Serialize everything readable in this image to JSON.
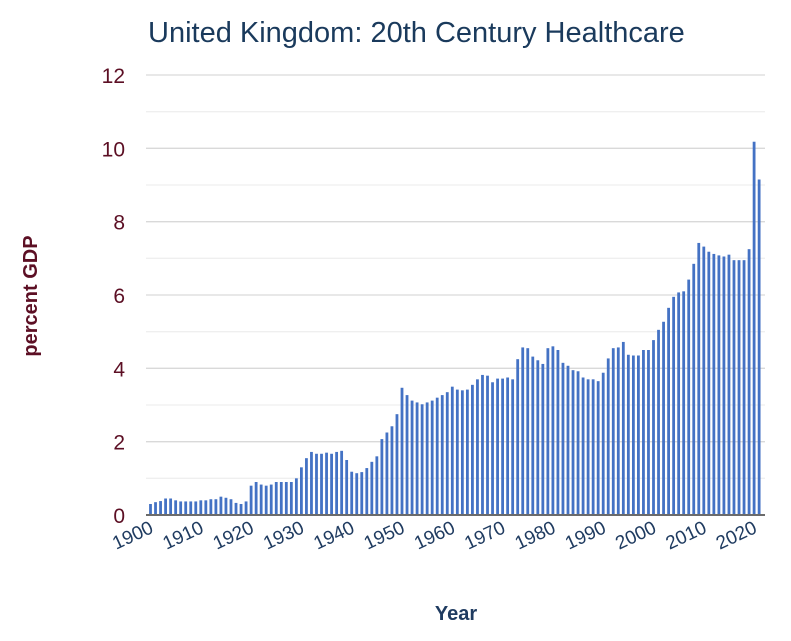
{
  "chart_data": {
    "type": "bar",
    "title": "United Kingdom: 20th Century Healthcare",
    "xlabel": "Year",
    "ylabel": "percent GDP",
    "ylim": [
      0,
      12
    ],
    "y_major_ticks": [
      0,
      2,
      4,
      6,
      8,
      10,
      12
    ],
    "y_minor_ticks": [
      1,
      3,
      5,
      7,
      9,
      11
    ],
    "x_tick_labels": [
      "1900",
      "1910",
      "1920",
      "1930",
      "1940",
      "1950",
      "1960",
      "1970",
      "1980",
      "1990",
      "2000",
      "2010",
      "2020"
    ],
    "grid": true,
    "legend": "none",
    "bar_color": "#4472c4",
    "x_start": 1900,
    "x_end": 2022,
    "values": [
      0.3,
      0.35,
      0.38,
      0.45,
      0.45,
      0.4,
      0.37,
      0.37,
      0.37,
      0.37,
      0.4,
      0.4,
      0.43,
      0.43,
      0.5,
      0.47,
      0.43,
      0.33,
      0.3,
      0.37,
      0.8,
      0.9,
      0.83,
      0.8,
      0.83,
      0.9,
      0.9,
      0.9,
      0.9,
      1.0,
      1.3,
      1.55,
      1.72,
      1.67,
      1.67,
      1.7,
      1.67,
      1.72,
      1.75,
      1.5,
      1.18,
      1.14,
      1.17,
      1.28,
      1.45,
      1.6,
      2.07,
      2.25,
      2.42,
      2.75,
      3.47,
      3.27,
      3.12,
      3.07,
      3.02,
      3.07,
      3.12,
      3.2,
      3.27,
      3.35,
      3.5,
      3.42,
      3.4,
      3.42,
      3.55,
      3.7,
      3.82,
      3.8,
      3.62,
      3.72,
      3.72,
      3.75,
      3.7,
      4.25,
      4.57,
      4.55,
      4.32,
      4.22,
      4.12,
      4.55,
      4.6,
      4.5,
      4.15,
      4.07,
      3.95,
      3.92,
      3.75,
      3.7,
      3.7,
      3.65,
      3.88,
      4.27,
      4.55,
      4.57,
      4.72,
      4.37,
      4.35,
      4.35,
      4.5,
      4.5,
      4.77,
      5.05,
      5.27,
      5.65,
      5.95,
      6.07,
      6.1,
      6.42,
      6.85,
      7.42,
      7.32,
      7.18,
      7.12,
      7.08,
      7.05,
      7.1,
      6.95,
      6.95,
      6.95,
      7.25,
      10.18,
      9.15,
      0
    ]
  }
}
